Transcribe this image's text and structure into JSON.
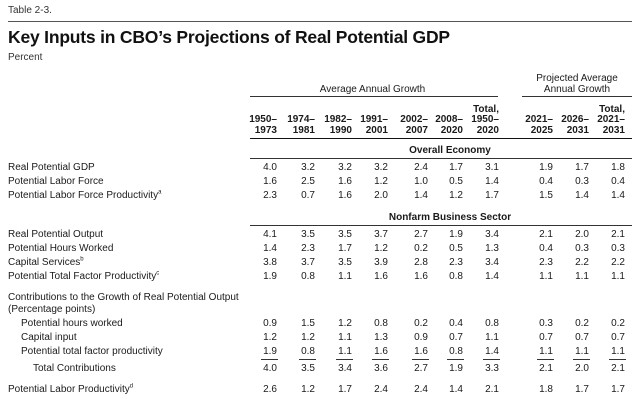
{
  "table_label": "Table 2-3.",
  "title": "Key Inputs in CBO’s Projections of Real Potential GDP",
  "unit": "Percent",
  "group_headers": {
    "historical": "Average Annual Growth",
    "projected": [
      "Projected Average",
      "Annual Growth"
    ]
  },
  "columns": [
    [
      "1950–",
      "1973"
    ],
    [
      "1974–",
      "1981"
    ],
    [
      "1982–",
      "1990"
    ],
    [
      "1991–",
      "2001"
    ],
    [
      "2002–",
      "2007"
    ],
    [
      "2008–",
      "2020"
    ],
    [
      "Total,",
      "1950–",
      "2020"
    ],
    [
      "2021–",
      "2025"
    ],
    [
      "2026–",
      "2031"
    ],
    [
      "Total,",
      "2021–",
      "2031"
    ]
  ],
  "sections": {
    "overall": "Overall Economy",
    "nonfarm": "Nonfarm Business Sector",
    "contrib_line1": "Contributions to the Growth of Real Potential Output",
    "contrib_line2": "(Percentage points)"
  },
  "rows": [
    {
      "label": "Real Potential GDP",
      "note": "",
      "values": [
        "4.0",
        "3.2",
        "3.2",
        "3.2",
        "2.4",
        "1.7",
        "3.1",
        "1.9",
        "1.7",
        "1.8"
      ]
    },
    {
      "label": "Potential Labor Force",
      "note": "",
      "values": [
        "1.6",
        "2.5",
        "1.6",
        "1.2",
        "1.0",
        "0.5",
        "1.4",
        "0.4",
        "0.3",
        "0.4"
      ]
    },
    {
      "label": "Potential Labor Force Productivity",
      "note": "a",
      "values": [
        "2.3",
        "0.7",
        "1.6",
        "2.0",
        "1.4",
        "1.2",
        "1.7",
        "1.5",
        "1.4",
        "1.4"
      ]
    },
    {
      "label": "Real Potential Output",
      "note": "",
      "values": [
        "4.1",
        "3.5",
        "3.5",
        "3.7",
        "2.7",
        "1.9",
        "3.4",
        "2.1",
        "2.0",
        "2.1"
      ]
    },
    {
      "label": "Potential Hours Worked",
      "note": "",
      "values": [
        "1.4",
        "2.3",
        "1.7",
        "1.2",
        "0.2",
        "0.5",
        "1.3",
        "0.4",
        "0.3",
        "0.3"
      ]
    },
    {
      "label": "Capital Services",
      "note": "b",
      "values": [
        "3.8",
        "3.7",
        "3.5",
        "3.9",
        "2.8",
        "2.3",
        "3.4",
        "2.3",
        "2.2",
        "2.2"
      ]
    },
    {
      "label": "Potential Total Factor Productivity",
      "note": "c",
      "values": [
        "1.9",
        "0.8",
        "1.1",
        "1.6",
        "1.6",
        "0.8",
        "1.4",
        "1.1",
        "1.1",
        "1.1"
      ]
    },
    {
      "label": "Potential hours worked",
      "note": "",
      "values": [
        "0.9",
        "1.5",
        "1.2",
        "0.8",
        "0.2",
        "0.4",
        "0.8",
        "0.3",
        "0.2",
        "0.2"
      ]
    },
    {
      "label": "Capital input",
      "note": "",
      "values": [
        "1.2",
        "1.2",
        "1.1",
        "1.3",
        "0.9",
        "0.7",
        "1.1",
        "0.7",
        "0.7",
        "0.7"
      ]
    },
    {
      "label": "Potential total factor productivity",
      "note": "",
      "values": [
        "1.9",
        "0.8",
        "1.1",
        "1.6",
        "1.6",
        "0.8",
        "1.4",
        "1.1",
        "1.1",
        "1.1"
      ]
    },
    {
      "label": "Total Contributions",
      "note": "",
      "values": [
        "4.0",
        "3.5",
        "3.4",
        "3.6",
        "2.7",
        "1.9",
        "3.3",
        "2.1",
        "2.0",
        "2.1"
      ]
    },
    {
      "label": "Potential Labor Productivity",
      "note": "d",
      "values": [
        "2.6",
        "1.2",
        "1.7",
        "2.4",
        "2.4",
        "1.4",
        "2.1",
        "1.8",
        "1.7",
        "1.7"
      ]
    }
  ]
}
